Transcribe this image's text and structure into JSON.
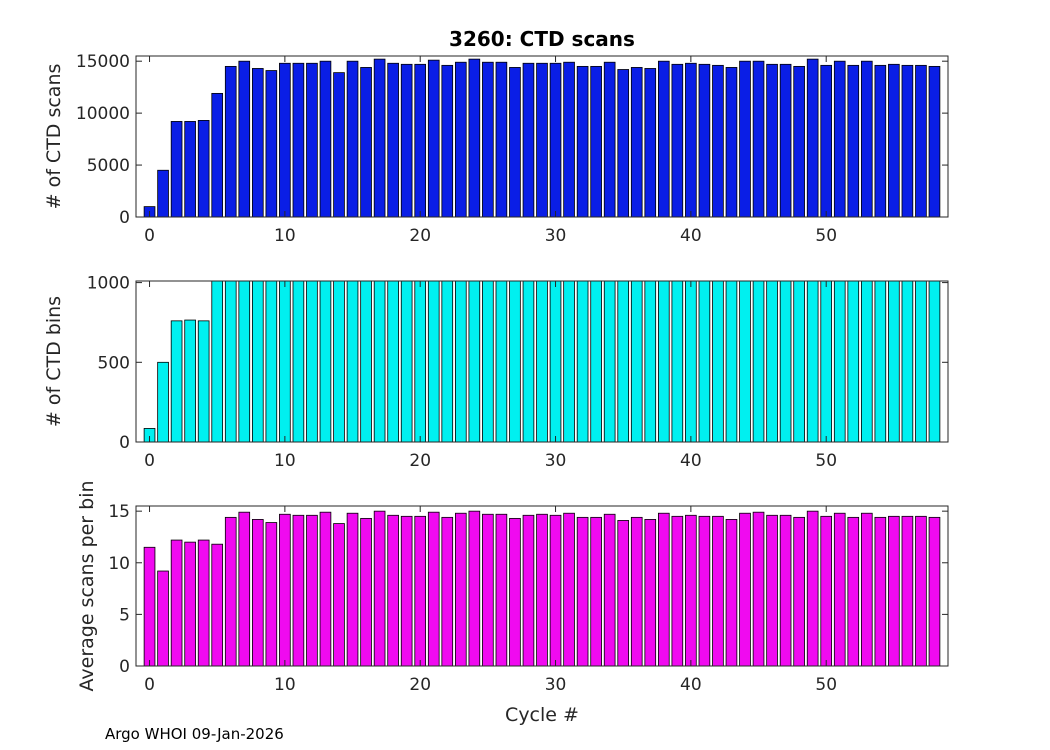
{
  "figure": {
    "footer": "Argo WHOI 09-Jan-2026"
  },
  "chart_data": [
    {
      "type": "bar",
      "title": "3260: CTD scans",
      "xlabel": "",
      "ylabel": "# of CTD scans",
      "xlim": [
        -1,
        59
      ],
      "ylim": [
        0,
        15500
      ],
      "xticks": [
        0,
        10,
        20,
        30,
        40,
        50
      ],
      "yticks": [
        0,
        5000,
        10000,
        15000
      ],
      "color": "#0a1ee6",
      "x": [
        0,
        1,
        2,
        3,
        4,
        5,
        6,
        7,
        8,
        9,
        10,
        11,
        12,
        13,
        14,
        15,
        16,
        17,
        18,
        19,
        20,
        21,
        22,
        23,
        24,
        25,
        26,
        27,
        28,
        29,
        30,
        31,
        32,
        33,
        34,
        35,
        36,
        37,
        38,
        39,
        40,
        41,
        42,
        43,
        44,
        45,
        46,
        47,
        48,
        49,
        50,
        51,
        52,
        53,
        54,
        55,
        56,
        57,
        58
      ],
      "values": [
        1000,
        4500,
        9200,
        9200,
        9300,
        11900,
        14500,
        15000,
        14300,
        14100,
        14800,
        14800,
        14800,
        15000,
        13900,
        15000,
        14400,
        15200,
        14800,
        14700,
        14700,
        15100,
        14600,
        14900,
        15200,
        14900,
        14900,
        14400,
        14800,
        14800,
        14800,
        14900,
        14500,
        14500,
        14900,
        14200,
        14400,
        14300,
        15000,
        14700,
        14800,
        14700,
        14600,
        14400,
        15000,
        15000,
        14700,
        14700,
        14500,
        15200,
        14600,
        15000,
        14600,
        15000,
        14600,
        14700,
        14600,
        14600,
        14500
      ]
    },
    {
      "type": "bar",
      "title": "",
      "xlabel": "",
      "ylabel": "# of CTD bins",
      "xlim": [
        -1,
        59
      ],
      "ylim": [
        0,
        1010
      ],
      "xticks": [
        0,
        10,
        20,
        30,
        40,
        50
      ],
      "yticks": [
        0,
        500,
        1000
      ],
      "color": "#00f0f0",
      "x": [
        0,
        1,
        2,
        3,
        4,
        5,
        6,
        7,
        8,
        9,
        10,
        11,
        12,
        13,
        14,
        15,
        16,
        17,
        18,
        19,
        20,
        21,
        22,
        23,
        24,
        25,
        26,
        27,
        28,
        29,
        30,
        31,
        32,
        33,
        34,
        35,
        36,
        37,
        38,
        39,
        40,
        41,
        42,
        43,
        44,
        45,
        46,
        47,
        48,
        49,
        50,
        51,
        52,
        53,
        54,
        55,
        56,
        57,
        58
      ],
      "values": [
        85,
        500,
        760,
        765,
        760,
        1010,
        1010,
        1010,
        1010,
        1010,
        1010,
        1010,
        1010,
        1010,
        1010,
        1010,
        1010,
        1010,
        1010,
        1010,
        1010,
        1010,
        1010,
        1010,
        1010,
        1010,
        1010,
        1010,
        1010,
        1010,
        1010,
        1010,
        1010,
        1010,
        1010,
        1010,
        1010,
        1010,
        1010,
        1010,
        1010,
        1010,
        1010,
        1010,
        1010,
        1010,
        1010,
        1010,
        1010,
        1010,
        1010,
        1010,
        1010,
        1010,
        1010,
        1010,
        1010,
        1010,
        1010
      ]
    },
    {
      "type": "bar",
      "title": "",
      "xlabel": "Cycle #",
      "ylabel": "Average scans per bin",
      "xlim": [
        -1,
        59
      ],
      "ylim": [
        0,
        15.5
      ],
      "xticks": [
        0,
        10,
        20,
        30,
        40,
        50
      ],
      "yticks": [
        0,
        5,
        10,
        15
      ],
      "color": "#f00af0",
      "x": [
        0,
        1,
        2,
        3,
        4,
        5,
        6,
        7,
        8,
        9,
        10,
        11,
        12,
        13,
        14,
        15,
        16,
        17,
        18,
        19,
        20,
        21,
        22,
        23,
        24,
        25,
        26,
        27,
        28,
        29,
        30,
        31,
        32,
        33,
        34,
        35,
        36,
        37,
        38,
        39,
        40,
        41,
        42,
        43,
        44,
        45,
        46,
        47,
        48,
        49,
        50,
        51,
        52,
        53,
        54,
        55,
        56,
        57,
        58
      ],
      "values": [
        11.5,
        9.2,
        12.2,
        12.0,
        12.2,
        11.8,
        14.4,
        14.9,
        14.2,
        13.9,
        14.7,
        14.6,
        14.6,
        14.9,
        13.8,
        14.8,
        14.3,
        15.0,
        14.6,
        14.5,
        14.5,
        14.9,
        14.4,
        14.8,
        15.0,
        14.7,
        14.7,
        14.3,
        14.6,
        14.7,
        14.6,
        14.8,
        14.4,
        14.4,
        14.7,
        14.1,
        14.4,
        14.2,
        14.8,
        14.5,
        14.6,
        14.5,
        14.5,
        14.2,
        14.8,
        14.9,
        14.6,
        14.6,
        14.4,
        15.0,
        14.5,
        14.8,
        14.4,
        14.8,
        14.4,
        14.5,
        14.5,
        14.5,
        14.4
      ]
    }
  ]
}
